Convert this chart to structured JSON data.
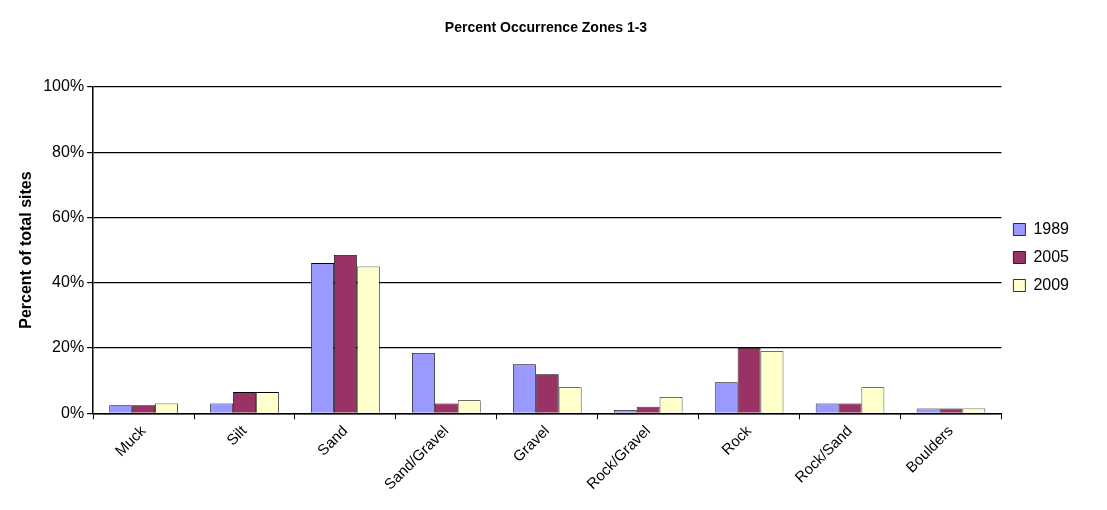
{
  "chart_data": {
    "type": "bar",
    "title": "Percent Occurrence Zones 1-3",
    "ylabel": "Percent of total sites",
    "categories": [
      "Muck",
      "Silt",
      "Sand",
      "Sand/Gravel",
      "Gravel",
      "Rock/Gravel",
      "Rock",
      "Rock/Sand",
      "Boulders"
    ],
    "series": [
      {
        "name": "1989",
        "color": "#9999ff",
        "values": [
          2.5,
          3,
          46,
          18.5,
          15,
          1,
          9.5,
          3,
          1.5
        ]
      },
      {
        "name": "2005",
        "color": "#993366",
        "values": [
          2.5,
          6.5,
          48.5,
          3,
          12,
          2,
          20,
          3,
          1.5
        ]
      },
      {
        "name": "2009",
        "color": "#ffffcc",
        "values": [
          3,
          6.5,
          45,
          4,
          8,
          5,
          19,
          8,
          1.5
        ]
      }
    ],
    "ylim": [
      0,
      100
    ],
    "yticks": [
      {
        "value": 0,
        "label": "0%"
      },
      {
        "value": 20,
        "label": "20%"
      },
      {
        "value": 40,
        "label": "40%"
      },
      {
        "value": 60,
        "label": "60%"
      },
      {
        "value": 80,
        "label": "80%"
      },
      {
        "value": 100,
        "label": "100%"
      }
    ],
    "grid": "y",
    "legend": "right"
  }
}
